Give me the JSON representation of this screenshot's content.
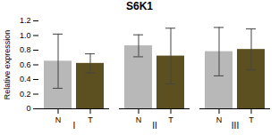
{
  "chart_data": {
    "type": "bar",
    "title": "S6K1",
    "ylabel": "Relative expression",
    "categories": [
      "N",
      "T",
      "N",
      "T",
      "N",
      "T"
    ],
    "group_labels": [
      "I",
      "II",
      "III"
    ],
    "values": [
      0.65,
      0.62,
      0.86,
      0.72,
      0.78,
      0.81
    ],
    "errors": [
      0.37,
      0.13,
      0.15,
      0.38,
      0.33,
      0.28
    ],
    "colors": [
      "#b8b8b8",
      "#5c5020",
      "#b8b8b8",
      "#5c5020",
      "#b8b8b8",
      "#5c5020"
    ],
    "ylim": [
      0,
      1.2
    ],
    "yticks": [
      0,
      0.2,
      0.4,
      0.6,
      0.8,
      {
        "value": 1.0,
        "label": "1.0"
      },
      1.2
    ],
    "grid": false
  }
}
